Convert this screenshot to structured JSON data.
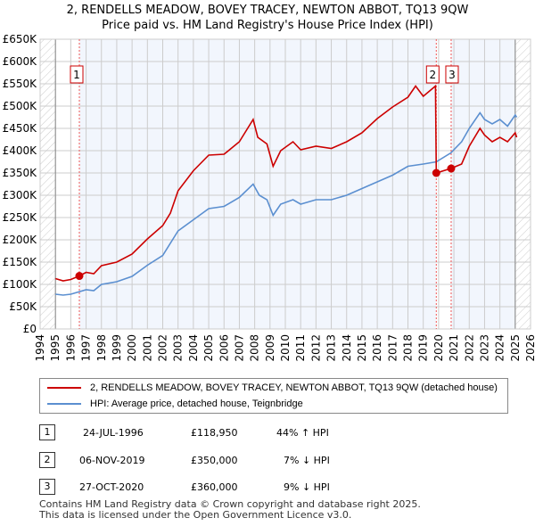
{
  "title": "2, RENDELLS MEADOW, BOVEY TRACEY, NEWTON ABBOT, TQ13 9QW",
  "subtitle": "Price paid vs. HM Land Registry's House Price Index (HPI)",
  "chart_data": {
    "type": "line",
    "xlim": [
      1994,
      2026
    ],
    "ylim": [
      0,
      650000
    ],
    "x_ticks": [
      "1994",
      "1995",
      "1996",
      "1997",
      "1998",
      "1999",
      "2000",
      "2001",
      "2002",
      "2003",
      "2004",
      "2005",
      "2006",
      "2007",
      "2008",
      "2009",
      "2010",
      "2011",
      "2012",
      "2013",
      "2014",
      "2015",
      "2016",
      "2017",
      "2018",
      "2019",
      "2020",
      "2021",
      "2022",
      "2023",
      "2024",
      "2025",
      "2026"
    ],
    "y_ticks": [
      "£0",
      "£50K",
      "£100K",
      "£150K",
      "£200K",
      "£250K",
      "£300K",
      "£350K",
      "£400K",
      "£450K",
      "£500K",
      "£550K",
      "£600K",
      "£650K"
    ],
    "series": [
      {
        "name": "2, RENDELLS MEADOW, BOVEY TRACEY, NEWTON ABBOT, TQ13 9QW (detached house)",
        "color": "#cc0000",
        "x": [
          1995,
          1995.5,
          1996,
          1996.56,
          1997,
          1997.5,
          1998,
          1999,
          2000,
          2001,
          2002,
          2002.5,
          2003,
          2004,
          2005,
          2006,
          2007,
          2007.9,
          2008.2,
          2008.8,
          2009.2,
          2009.7,
          2010.5,
          2011,
          2012,
          2013,
          2014,
          2015,
          2016,
          2017,
          2018,
          2018.5,
          2019,
          2019.8,
          2019.85,
          2020.8,
          2021.5,
          2022,
          2022.7,
          2023,
          2023.5,
          2024,
          2024.5,
          2025,
          2025.1
        ],
        "y": [
          113000,
          108000,
          111000,
          118950,
          127000,
          124000,
          142000,
          150000,
          168000,
          202000,
          232000,
          260000,
          310000,
          355000,
          390000,
          392000,
          420000,
          470000,
          430000,
          415000,
          365000,
          400000,
          420000,
          402000,
          410000,
          405000,
          420000,
          440000,
          472000,
          498000,
          520000,
          545000,
          522000,
          545000,
          350000,
          360000,
          370000,
          410000,
          450000,
          435000,
          420000,
          430000,
          420000,
          440000,
          430000
        ]
      },
      {
        "name": "HPI: Average price, detached house, Teignbridge",
        "color": "#5b8fd0",
        "x": [
          1995,
          1995.5,
          1996,
          1997,
          1997.5,
          1998,
          1999,
          2000,
          2001,
          2002,
          2003,
          2004,
          2005,
          2006,
          2007,
          2007.9,
          2008.3,
          2008.8,
          2009.2,
          2009.7,
          2010.5,
          2011,
          2012,
          2013,
          2014,
          2015,
          2016,
          2017,
          2018,
          2019,
          2019.85,
          2020.8,
          2021.5,
          2022,
          2022.7,
          2023,
          2023.5,
          2024,
          2024.5,
          2025,
          2025.1
        ],
        "y": [
          78000,
          76000,
          78000,
          88000,
          86000,
          100000,
          106000,
          118000,
          143000,
          165000,
          220000,
          245000,
          270000,
          275000,
          295000,
          325000,
          300000,
          290000,
          255000,
          280000,
          290000,
          280000,
          290000,
          290000,
          300000,
          315000,
          330000,
          345000,
          365000,
          370000,
          375000,
          395000,
          420000,
          450000,
          485000,
          470000,
          460000,
          470000,
          455000,
          480000,
          475000
        ]
      }
    ],
    "sales": [
      {
        "label": "1",
        "x": 1996.56,
        "y": 118950
      },
      {
        "label": "2",
        "x": 2019.85,
        "y": 350000
      },
      {
        "label": "3",
        "x": 2020.82,
        "y": 360000
      }
    ]
  },
  "legend": [
    "2, RENDELLS MEADOW, BOVEY TRACEY, NEWTON ABBOT, TQ13 9QW (detached house)",
    "HPI: Average price, detached house, Teignbridge"
  ],
  "table": [
    {
      "num": "1",
      "date": "24-JUL-1996",
      "price": "£118,950",
      "hpi": "44% ↑ HPI"
    },
    {
      "num": "2",
      "date": "06-NOV-2019",
      "price": "£350,000",
      "hpi": "7% ↓ HPI"
    },
    {
      "num": "3",
      "date": "27-OCT-2020",
      "price": "£360,000",
      "hpi": "9% ↓ HPI"
    }
  ],
  "footer": [
    "Contains HM Land Registry data © Crown copyright and database right 2025.",
    "This data is licensed under the Open Government Licence v3.0."
  ]
}
